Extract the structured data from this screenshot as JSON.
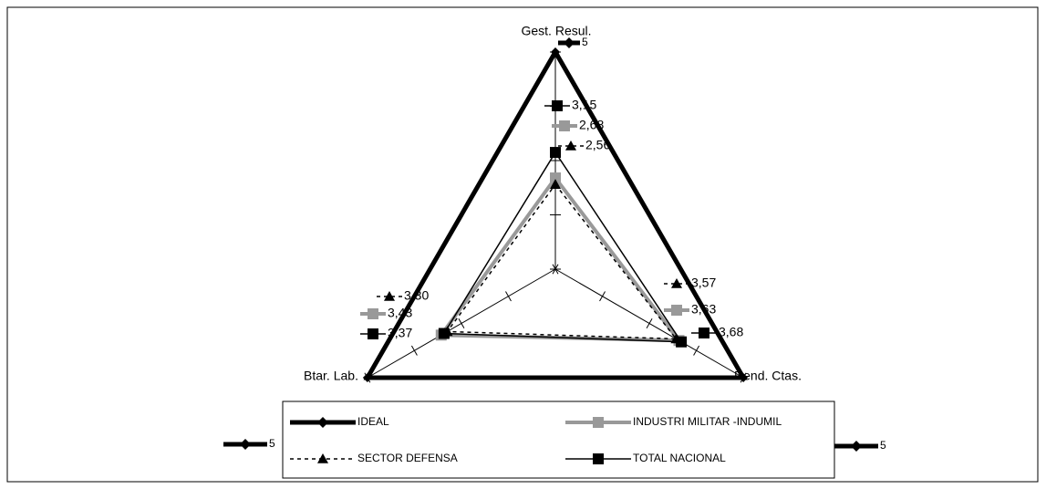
{
  "chart_data": {
    "type": "radar",
    "categories": [
      "Gest. Resul.",
      "Rend. Ctas.",
      "Btar. Lab."
    ],
    "rlim": [
      1,
      5
    ],
    "rticks": [
      1,
      2,
      3,
      4,
      5
    ],
    "legend": "bottom",
    "series": [
      {
        "name": "IDEAL",
        "color": "#000000",
        "marker": "diamond",
        "values": [
          5,
          5,
          5
        ],
        "value_labels": [
          "5",
          "5",
          "5"
        ]
      },
      {
        "name": "INDUSTRI MILITAR -INDUMIL",
        "color": "#999999",
        "marker": "square",
        "values": [
          2.68,
          3.63,
          3.43
        ],
        "value_labels": [
          "2,68",
          "3,63",
          "3,43"
        ]
      },
      {
        "name": "SECTOR DEFENSA",
        "color": "#000000",
        "marker": "triangle",
        "dashed": true,
        "values": [
          2.56,
          3.57,
          3.3
        ],
        "value_labels": [
          "2,56",
          "3,57",
          "3,30"
        ]
      },
      {
        "name": "TOTAL NACIONAL",
        "color": "#000000",
        "marker": "square",
        "values": [
          3.15,
          3.68,
          3.37
        ],
        "value_labels": [
          "3,15",
          "3,68",
          "3,37"
        ]
      }
    ]
  }
}
